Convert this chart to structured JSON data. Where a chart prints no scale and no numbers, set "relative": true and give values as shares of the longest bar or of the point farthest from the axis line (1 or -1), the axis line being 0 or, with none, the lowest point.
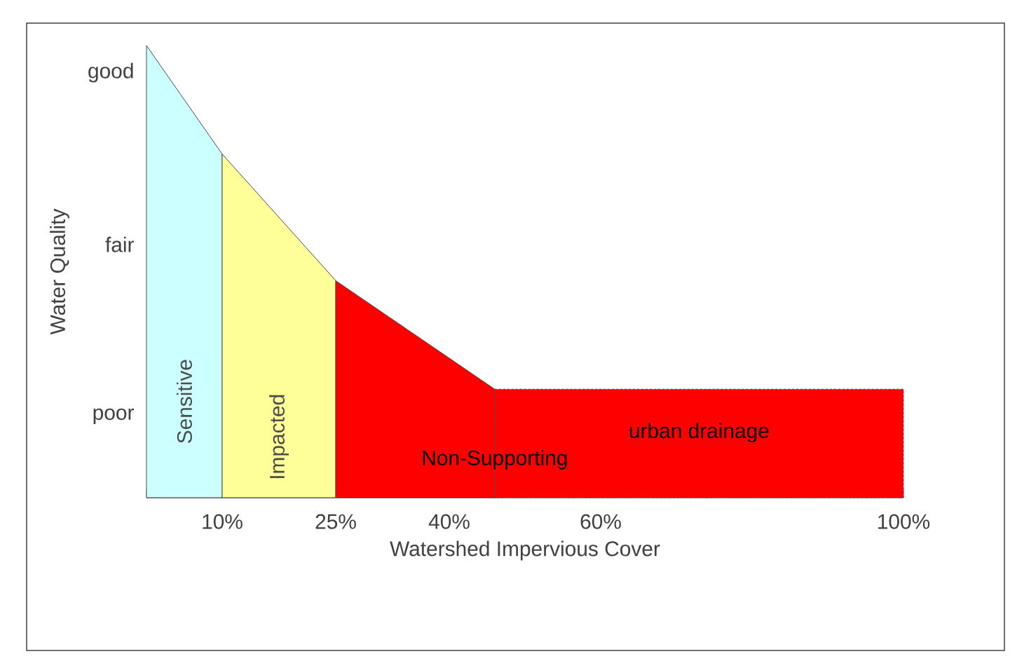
{
  "chart_data": {
    "type": "area",
    "xlabel": "Watershed Impervious Cover",
    "ylabel": "Water Quality",
    "relative": true,
    "xlim": [
      0,
      100
    ],
    "xticks": [
      {
        "value": 0,
        "label": null
      },
      {
        "value": 10,
        "label": "10%"
      },
      {
        "value": 25,
        "label": "25%"
      },
      {
        "value": 40,
        "label": "40%"
      },
      {
        "value": 60,
        "label": "60%"
      },
      {
        "value": 100,
        "label": "100%"
      }
    ],
    "annotations": [
      "good",
      "fair",
      "poor"
    ],
    "series": [
      {
        "name": "Sensitive",
        "color": "#ccffff",
        "x": [
          0,
          10
        ],
        "values": [
          1,
          0.76
        ]
      },
      {
        "name": "Impacted",
        "color": "#ffff99",
        "x": [
          10,
          25
        ],
        "values": [
          0.76,
          0.48
        ]
      },
      {
        "name": "Non-Supporting",
        "color": "#ff0000",
        "x": [
          25,
          46
        ],
        "values": [
          0.48,
          0.24
        ]
      },
      {
        "name": "urban drainage",
        "color": "#fe0000",
        "x": [
          46,
          100
        ],
        "values": [
          0.24,
          0.24
        ],
        "line_style": "dashed"
      }
    ]
  }
}
